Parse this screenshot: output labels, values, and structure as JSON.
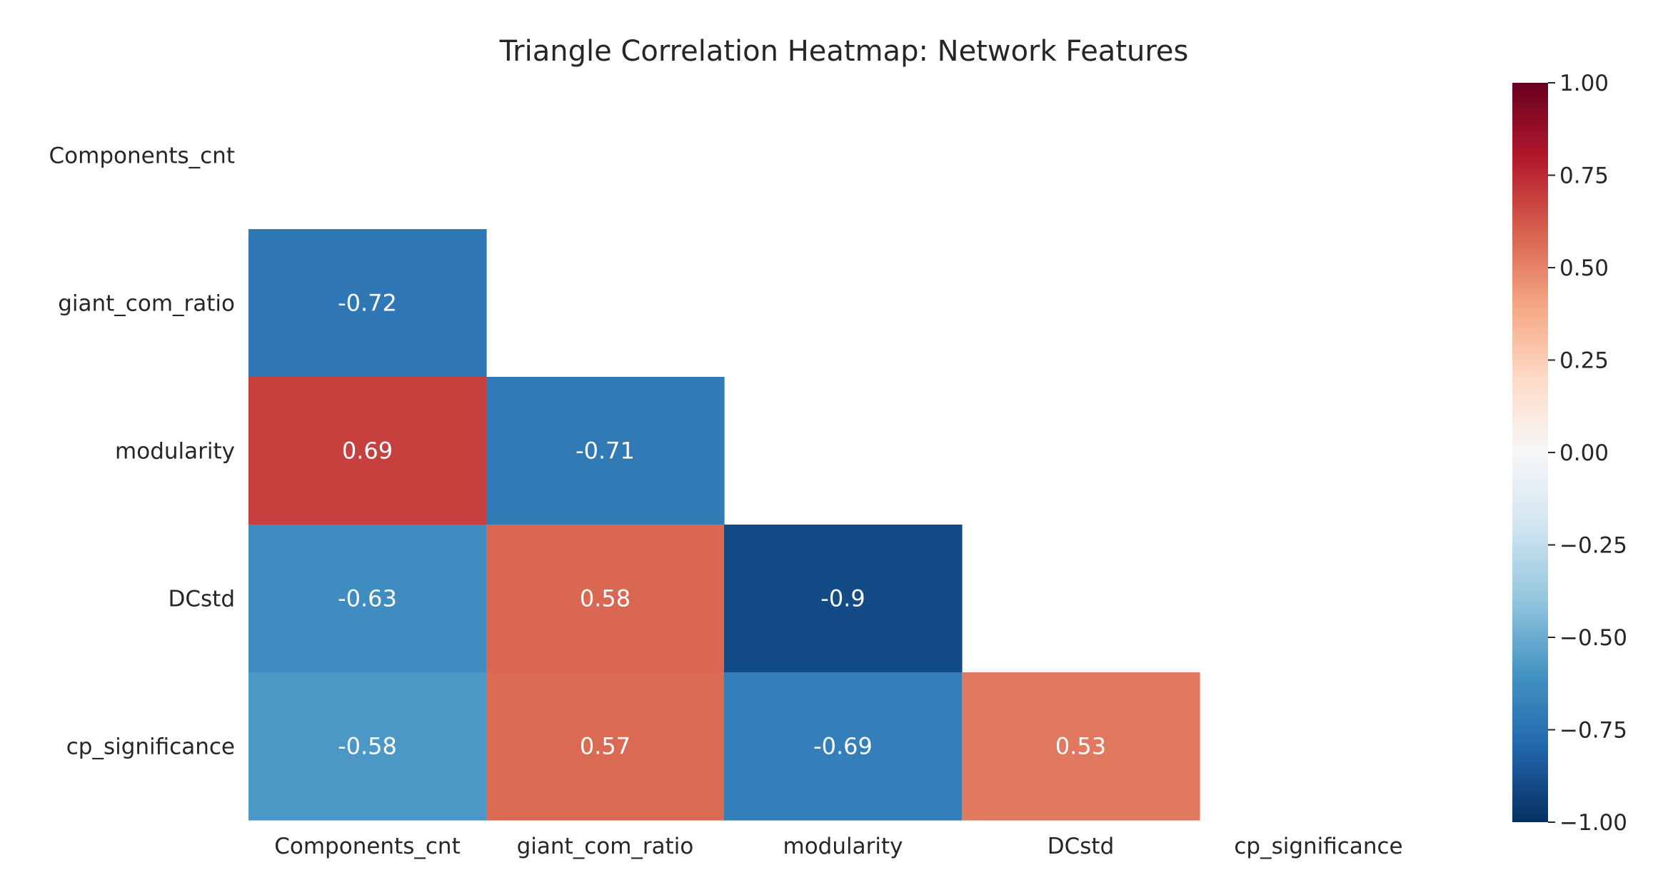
{
  "chart_data": {
    "type": "heatmap",
    "title": "Triangle Correlation Heatmap: Network Features",
    "rows": [
      "Components_cnt",
      "giant_com_ratio",
      "modularity",
      "DCstd",
      "cp_significance"
    ],
    "columns": [
      "Components_cnt",
      "giant_com_ratio",
      "modularity",
      "DCstd",
      "cp_significance"
    ],
    "mask": "upper triangle including diagonal",
    "cells": [
      {
        "row": "giant_com_ratio",
        "col": "Components_cnt",
        "value": -0.72,
        "label": "-0.72"
      },
      {
        "row": "modularity",
        "col": "Components_cnt",
        "value": 0.69,
        "label": "0.69"
      },
      {
        "row": "modularity",
        "col": "giant_com_ratio",
        "value": -0.71,
        "label": "-0.71"
      },
      {
        "row": "DCstd",
        "col": "Components_cnt",
        "value": -0.63,
        "label": "-0.63"
      },
      {
        "row": "DCstd",
        "col": "giant_com_ratio",
        "value": 0.58,
        "label": "0.58"
      },
      {
        "row": "DCstd",
        "col": "modularity",
        "value": -0.9,
        "label": "-0.9"
      },
      {
        "row": "cp_significance",
        "col": "Components_cnt",
        "value": -0.58,
        "label": "-0.58"
      },
      {
        "row": "cp_significance",
        "col": "giant_com_ratio",
        "value": 0.57,
        "label": "0.57"
      },
      {
        "row": "cp_significance",
        "col": "modularity",
        "value": -0.69,
        "label": "-0.69"
      },
      {
        "row": "cp_significance",
        "col": "DCstd",
        "value": 0.53,
        "label": "0.53"
      }
    ],
    "colorbar": {
      "colormap": "RdBu_r",
      "vmin": -1.0,
      "vmax": 1.0,
      "ticks": [
        {
          "value": 1.0,
          "label": "1.00"
        },
        {
          "value": 0.75,
          "label": "0.75"
        },
        {
          "value": 0.5,
          "label": "0.50"
        },
        {
          "value": 0.25,
          "label": "0.25"
        },
        {
          "value": 0.0,
          "label": "0.00"
        },
        {
          "value": -0.25,
          "label": "−0.25"
        },
        {
          "value": -0.5,
          "label": "−0.50"
        },
        {
          "value": -0.75,
          "label": "−0.75"
        },
        {
          "value": -1.0,
          "label": "−1.00"
        }
      ]
    },
    "colors": {
      "cell_text": "#ffffff",
      "axis_text": "#262626",
      "colormap_stops": [
        "#053061",
        "#2166ac",
        "#4393c3",
        "#92c5de",
        "#d1e5f0",
        "#f7f7f7",
        "#fddbc7",
        "#f4a582",
        "#d6604d",
        "#b2182b",
        "#67001f"
      ]
    }
  }
}
